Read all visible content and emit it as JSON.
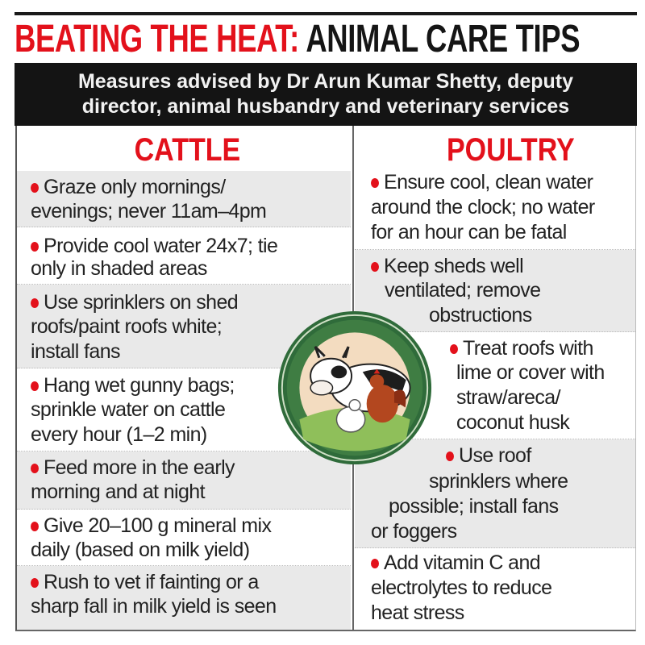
{
  "title": {
    "part1": "BEATING THE HEAT:",
    "part2": "ANIMAL CARE TIPS"
  },
  "subtitle": {
    "line1": "Measures advised by Dr Arun Kumar Shetty, deputy",
    "line2": "director, animal husbandry and veterinary services"
  },
  "colors": {
    "accent": "#e3111b",
    "band": "#141414",
    "row_shade": "#e9e9e9",
    "medallion_green": "#2f6b3a"
  },
  "cattle": {
    "heading": "CATTLE",
    "tips": [
      {
        "lines": [
          "Graze only mornings/",
          "evenings; never 11am–4pm"
        ]
      },
      {
        "lines": [
          "Provide cool water 24x7; tie",
          "only in shaded areas"
        ]
      },
      {
        "lines": [
          "Use sprinklers on shed",
          "roofs/paint roofs white;",
          "install fans"
        ]
      },
      {
        "lines": [
          "Hang wet gunny bags;",
          "sprinkle water on cattle",
          "every hour (1–2 min)"
        ]
      },
      {
        "lines": [
          "Feed more in the early",
          "morning and at night"
        ]
      },
      {
        "lines": [
          "Give 20–100 g mineral mix",
          "daily (based on milk yield)"
        ]
      },
      {
        "lines": [
          "Rush to vet if fainting or a",
          "sharp fall in milk yield is seen"
        ]
      }
    ]
  },
  "poultry": {
    "heading": "POULTRY",
    "tips": [
      {
        "lines": [
          "Ensure cool, clean water",
          "around the clock; no water",
          "for an hour can be fatal"
        ]
      },
      {
        "lines": [
          "Keep sheds well",
          "ventilated; remove",
          "obstructions"
        ]
      },
      {
        "lines": [
          "Treat roofs with",
          "lime or cover with",
          "straw/areca/",
          "coconut husk"
        ]
      },
      {
        "lines": [
          "Use roof",
          "sprinklers where",
          "possible; install fans",
          "or foggers"
        ]
      },
      {
        "lines": [
          "Add vitamin C and",
          "electrolytes to reduce",
          "heat stress"
        ]
      }
    ]
  },
  "illustration": {
    "icon": "cow-and-chickens-medallion"
  }
}
